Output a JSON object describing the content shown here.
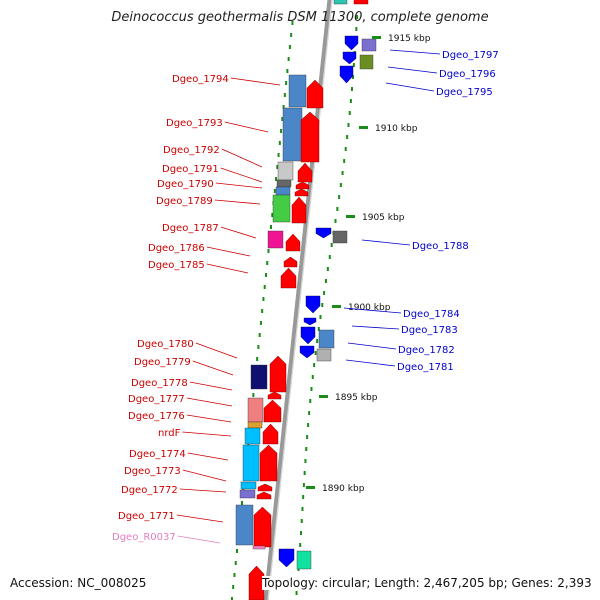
{
  "title": "Deinococcus geothermalis DSM 11300, complete genome",
  "footer": {
    "accession": "Accession: NC_008025",
    "topology": "Topology: circular; Length: 2,467,205 bp; Genes: 2,393"
  },
  "colors": {
    "forward_label": "#cc0000",
    "reverse_label": "#0000cc",
    "rna_label": "#e080c0",
    "backbone": "#999999",
    "tick": "#1a8c1a"
  },
  "ticks": [
    {
      "label": "1915 kbp"
    },
    {
      "label": "1910 kbp"
    },
    {
      "label": "1905 kbp"
    },
    {
      "label": "1900 kbp"
    },
    {
      "label": "1895 kbp"
    },
    {
      "label": "1890 kbp"
    }
  ],
  "forward_genes": [
    {
      "label": "Dgeo_1794"
    },
    {
      "label": "Dgeo_1793"
    },
    {
      "label": "Dgeo_1792"
    },
    {
      "label": "Dgeo_1791"
    },
    {
      "label": "Dgeo_1790"
    },
    {
      "label": "Dgeo_1789"
    },
    {
      "label": "Dgeo_1787"
    },
    {
      "label": "Dgeo_1786"
    },
    {
      "label": "Dgeo_1785"
    },
    {
      "label": "Dgeo_1780"
    },
    {
      "label": "Dgeo_1779"
    },
    {
      "label": "Dgeo_1778"
    },
    {
      "label": "Dgeo_1777"
    },
    {
      "label": "Dgeo_1776"
    },
    {
      "label": "nrdF"
    },
    {
      "label": "Dgeo_1774"
    },
    {
      "label": "Dgeo_1773"
    },
    {
      "label": "Dgeo_1772"
    },
    {
      "label": "Dgeo_1771"
    },
    {
      "label": "Dgeo_R0037",
      "rna": true
    }
  ],
  "reverse_genes": [
    {
      "label": "Dgeo_1797"
    },
    {
      "label": "Dgeo_1796"
    },
    {
      "label": "Dgeo_1795"
    },
    {
      "label": "Dgeo_1788"
    },
    {
      "label": "Dgeo_1784"
    },
    {
      "label": "Dgeo_1783"
    },
    {
      "label": "Dgeo_1782"
    },
    {
      "label": "Dgeo_1781"
    }
  ]
}
